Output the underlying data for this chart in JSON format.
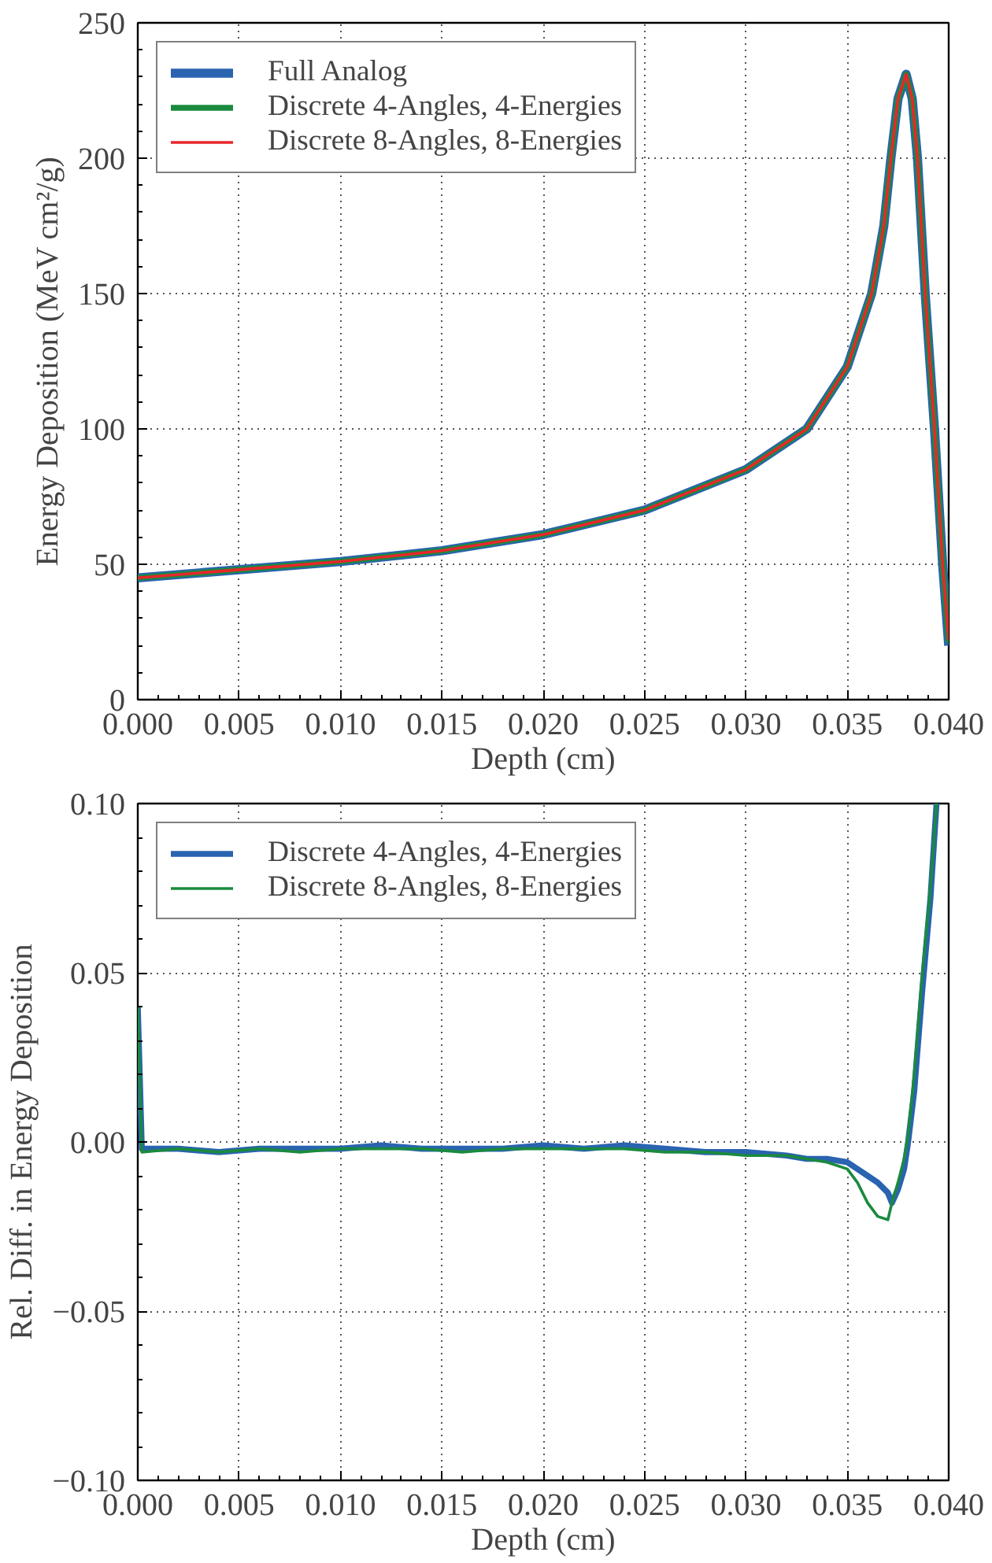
{
  "chart_data": [
    {
      "type": "line",
      "xlabel": "Depth (cm)",
      "ylabel": "Energy Deposition (MeV cm²/g)",
      "legend": "top left",
      "grid": true,
      "line_style": "solid",
      "xlim": [
        0,
        0.04
      ],
      "ylim": [
        0,
        250
      ],
      "xticks": [
        {
          "value": 0,
          "label": "0.000"
        },
        {
          "value": 0.005,
          "label": "0.005"
        },
        {
          "value": 0.01,
          "label": "0.010"
        },
        {
          "value": 0.015,
          "label": "0.015"
        },
        {
          "value": 0.02,
          "label": "0.020"
        },
        {
          "value": 0.025,
          "label": "0.025"
        },
        {
          "value": 0.03,
          "label": "0.030"
        },
        {
          "value": 0.035,
          "label": "0.035"
        },
        {
          "value": 0.04,
          "label": "0.040"
        }
      ],
      "yticks": [
        0,
        50,
        100,
        150,
        200,
        250
      ],
      "x": [
        0,
        0.005,
        0.01,
        0.015,
        0.02,
        0.025,
        0.03,
        0.033,
        0.035,
        0.0362,
        0.0368,
        0.03715,
        0.0375,
        0.0379,
        0.0382,
        0.03846,
        0.03884,
        0.0393,
        0.0397,
        0.04
      ],
      "series": [
        {
          "name": "Full Analog",
          "color": "#2a63b0",
          "values": [
            45,
            48,
            51,
            55,
            61,
            70,
            85,
            100,
            123,
            150,
            175,
            200,
            222,
            231,
            222,
            200,
            150,
            100,
            50,
            20
          ]
        },
        {
          "name": "Discrete 4-Angles, 4-Energies",
          "color": "#1a8a3e",
          "values": [
            45,
            48,
            51,
            55,
            61,
            70,
            85,
            100,
            123,
            150,
            175,
            200,
            222,
            231,
            222,
            200,
            150,
            100,
            50,
            21
          ]
        },
        {
          "name": "Discrete 8-Angles, 8-Energies",
          "color": "#e8262b",
          "values": [
            45,
            48,
            51,
            55,
            61,
            70,
            85,
            100,
            123,
            150,
            175,
            200,
            222,
            231,
            222,
            200,
            150,
            100,
            50,
            22
          ]
        }
      ]
    },
    {
      "type": "line",
      "xlabel": "Depth (cm)",
      "ylabel": "Rel. Diff. in Energy Deposition",
      "legend": "top left",
      "grid": true,
      "line_style": "solid",
      "xlim": [
        0,
        0.04
      ],
      "ylim": [
        -0.1,
        0.1
      ],
      "xticks": [
        {
          "value": 0,
          "label": "0.000"
        },
        {
          "value": 0.005,
          "label": "0.005"
        },
        {
          "value": 0.01,
          "label": "0.010"
        },
        {
          "value": 0.015,
          "label": "0.015"
        },
        {
          "value": 0.02,
          "label": "0.020"
        },
        {
          "value": 0.025,
          "label": "0.025"
        },
        {
          "value": 0.03,
          "label": "0.030"
        },
        {
          "value": 0.035,
          "label": "0.035"
        },
        {
          "value": 0.04,
          "label": "0.040"
        }
      ],
      "yticks": [
        {
          "value": -0.1,
          "label": "−0.10"
        },
        {
          "value": -0.05,
          "label": "−0.05"
        },
        {
          "value": 0,
          "label": "0.00"
        },
        {
          "value": 0.05,
          "label": "0.05"
        },
        {
          "value": 0.1,
          "label": "0.10"
        }
      ],
      "series": [
        {
          "name": "Discrete 4-Angles, 4-Energies",
          "color": "#2a63b0",
          "x": [
            0,
            0.0002,
            0.002,
            0.004,
            0.006,
            0.008,
            0.01,
            0.012,
            0.014,
            0.016,
            0.018,
            0.02,
            0.022,
            0.024,
            0.026,
            0.028,
            0.03,
            0.032,
            0.033,
            0.034,
            0.035,
            0.0355,
            0.036,
            0.0365,
            0.037,
            0.0372,
            0.0375,
            0.0378,
            0.038,
            0.0383,
            0.0387,
            0.0391,
            0.0394
          ],
          "values": [
            0.04,
            -0.002,
            -0.002,
            -0.003,
            -0.002,
            -0.002,
            -0.002,
            -0.001,
            -0.002,
            -0.002,
            -0.002,
            -0.001,
            -0.002,
            -0.001,
            -0.002,
            -0.003,
            -0.003,
            -0.004,
            -0.005,
            -0.005,
            -0.006,
            -0.008,
            -0.01,
            -0.012,
            -0.015,
            -0.018,
            -0.014,
            -0.008,
            0.0,
            0.015,
            0.045,
            0.072,
            0.1
          ]
        },
        {
          "name": "Discrete 8-Angles, 8-Energies",
          "color": "#1a8a3e",
          "x": [
            0,
            0.0002,
            0.002,
            0.004,
            0.006,
            0.008,
            0.01,
            0.012,
            0.014,
            0.016,
            0.018,
            0.02,
            0.022,
            0.024,
            0.026,
            0.028,
            0.03,
            0.032,
            0.033,
            0.034,
            0.035,
            0.0355,
            0.036,
            0.0365,
            0.037,
            0.0372,
            0.0375,
            0.0378,
            0.038,
            0.0383,
            0.0387,
            0.0391,
            0.0394
          ],
          "values": [
            0.04,
            -0.003,
            -0.002,
            -0.003,
            -0.002,
            -0.003,
            -0.002,
            -0.002,
            -0.002,
            -0.003,
            -0.002,
            -0.002,
            -0.002,
            -0.002,
            -0.003,
            -0.003,
            -0.004,
            -0.004,
            -0.005,
            -0.006,
            -0.008,
            -0.012,
            -0.018,
            -0.022,
            -0.023,
            -0.018,
            -0.012,
            -0.005,
            0.002,
            0.02,
            0.05,
            0.075,
            0.1
          ]
        }
      ]
    }
  ]
}
